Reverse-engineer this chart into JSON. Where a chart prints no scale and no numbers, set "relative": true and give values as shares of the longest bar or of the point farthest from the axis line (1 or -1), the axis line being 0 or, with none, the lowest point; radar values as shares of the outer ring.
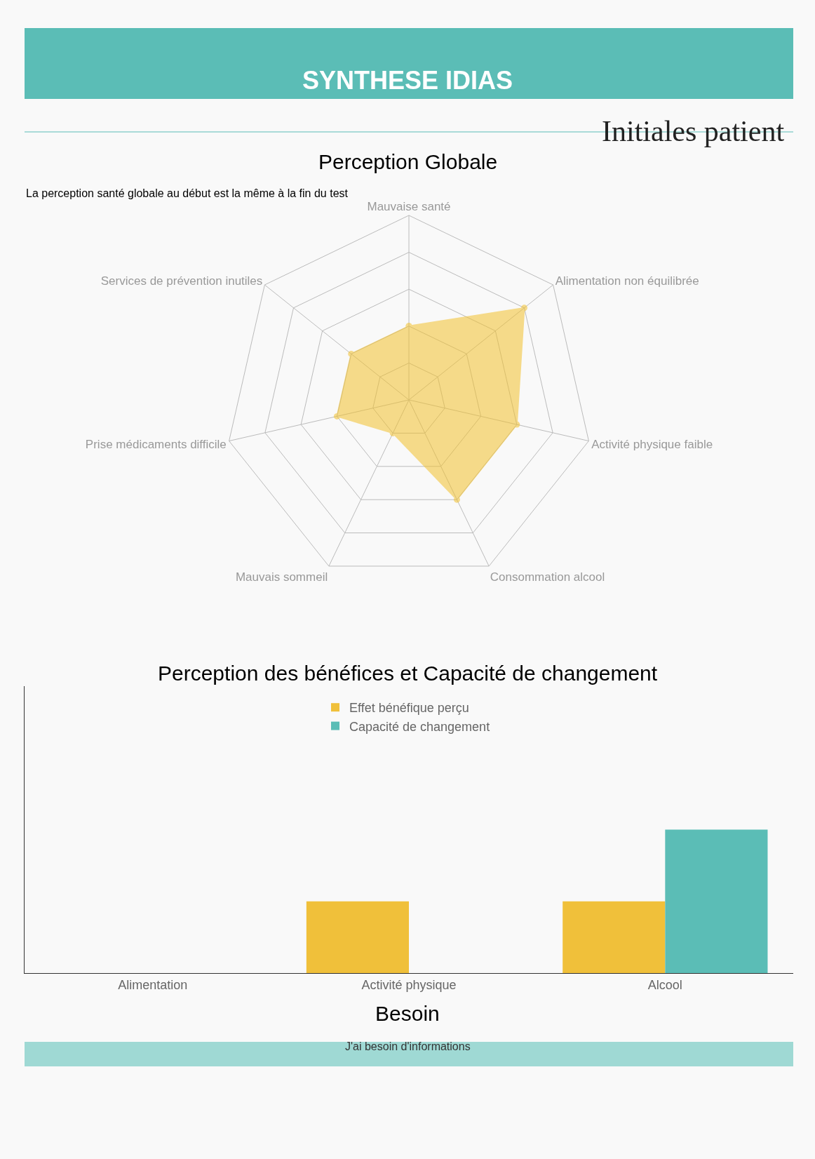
{
  "chart_data": [
    {
      "type": "radar",
      "title": "Perception Globale",
      "subtitle": "La perception santé globale au début est la même à la fin du test",
      "annotations": [
        "SYNTHESE IDIAS",
        "Initiales patient"
      ],
      "categories": [
        "Mauvaise santé",
        "Alimentation non équilibrée",
        "Activité physique faible",
        "Consommation alcool",
        "Mauvais sommeil",
        "Prise médicaments difficile",
        "Services de prévention inutiles"
      ],
      "relative": true,
      "marker": "circle",
      "series": [
        {
          "color": "#f2c12e",
          "values": [
            0.4,
            0.8,
            0.6,
            0.6,
            0.2,
            0.4,
            0.4
          ]
        }
      ]
    },
    {
      "type": "bar",
      "title": "Perception des bénéfices et Capacité de changement",
      "relative": true,
      "legend": "top",
      "categories": [
        "Alimentation",
        "Activité physique",
        "Alcool"
      ],
      "series": [
        {
          "name": "Effet bénéfique perçu",
          "color": "#f0c03a",
          "values": [
            0,
            0.5,
            0.5
          ]
        },
        {
          "name": "Capacité de changement",
          "color": "#5bbdb6",
          "values": [
            0,
            0,
            1
          ]
        }
      ]
    },
    {
      "type": "other",
      "title": "Besoin",
      "annotations": [
        "J'ai besoin d'informations"
      ]
    }
  ]
}
